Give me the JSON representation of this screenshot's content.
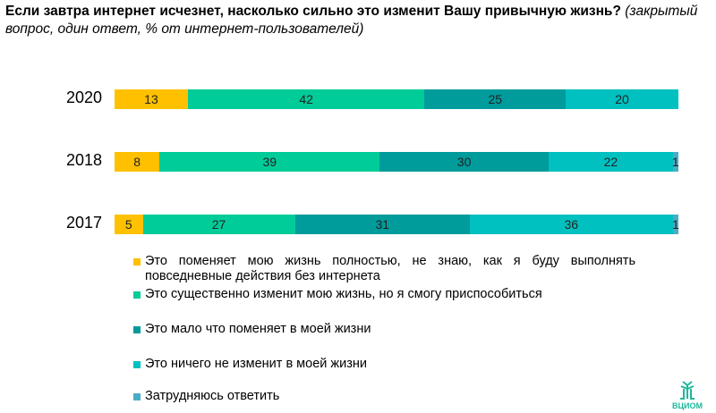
{
  "title": {
    "main": "Если завтра интернет исчезнет, насколько сильно это изменит Вашу привычную жизнь?",
    "note": "(закрытый вопрос, один ответ, % от интернет-пользователей)"
  },
  "logo": "ВЦИОМ",
  "chart_data": {
    "type": "bar",
    "orientation": "horizontal-stacked-100",
    "categories": [
      "2020",
      "2018",
      "2017"
    ],
    "series": [
      {
        "name": "Это поменяет мою жизнь полностью, не знаю, как я буду выполнять повседневные действия без интернета",
        "color": "#FFC000",
        "values": [
          13,
          8,
          5
        ]
      },
      {
        "name": "Это существенно изменит мою жизнь, но я смогу приспособиться",
        "color": "#00CC99",
        "values": [
          42,
          39,
          27
        ]
      },
      {
        "name": "Это мало что поменяет в моей жизни",
        "color": "#009B9B",
        "values": [
          25,
          30,
          31
        ]
      },
      {
        "name": "Это ничего не изменит в моей жизни",
        "color": "#00C0C0",
        "values": [
          20,
          22,
          36
        ]
      },
      {
        "name": "Затрудняюсь ответить",
        "color": "#4BACC6",
        "values": [
          0,
          1,
          1
        ]
      }
    ],
    "xlim": [
      0,
      100
    ],
    "grid": false,
    "legend": "bottom"
  }
}
